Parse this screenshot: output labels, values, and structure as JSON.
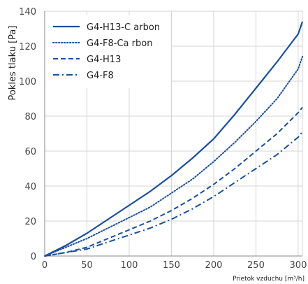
{
  "chart_data": {
    "type": "line",
    "xlabel": "Prietok vzduchu [m³/h]",
    "ylabel": "Pokles tlaku [Pa]",
    "xlim": [
      0,
      305
    ],
    "ylim": [
      0,
      140
    ],
    "x_ticks": [
      0,
      50,
      100,
      150,
      200,
      250,
      300
    ],
    "y_ticks": [
      0,
      20,
      40,
      60,
      80,
      100,
      120,
      140
    ],
    "grid": "both",
    "legend_position": "top-left",
    "series": [
      {
        "name": "G4-H13-C arbon",
        "style": "solid",
        "color": "#1a4f9c",
        "points": [
          [
            0,
            0
          ],
          [
            25,
            6
          ],
          [
            50,
            13
          ],
          [
            75,
            21
          ],
          [
            100,
            29
          ],
          [
            125,
            37
          ],
          [
            150,
            46
          ],
          [
            175,
            56
          ],
          [
            200,
            67
          ],
          [
            225,
            81
          ],
          [
            250,
            96
          ],
          [
            275,
            111
          ],
          [
            300,
            127
          ],
          [
            305,
            134
          ]
        ]
      },
      {
        "name": "G4-F8-Ca rbon",
        "style": "dotted",
        "color": "#1a4f9c",
        "points": [
          [
            0,
            0
          ],
          [
            25,
            5
          ],
          [
            50,
            10
          ],
          [
            75,
            16
          ],
          [
            100,
            22
          ],
          [
            125,
            28
          ],
          [
            150,
            36
          ],
          [
            175,
            44
          ],
          [
            200,
            54
          ],
          [
            225,
            65
          ],
          [
            250,
            77
          ],
          [
            275,
            90
          ],
          [
            300,
            107
          ],
          [
            305,
            114
          ]
        ]
      },
      {
        "name": "G4-H13",
        "style": "dashed",
        "color": "#1a4f9c",
        "points": [
          [
            0,
            0
          ],
          [
            25,
            2
          ],
          [
            50,
            5
          ],
          [
            75,
            10
          ],
          [
            100,
            15
          ],
          [
            125,
            20
          ],
          [
            150,
            26
          ],
          [
            175,
            33
          ],
          [
            200,
            41
          ],
          [
            225,
            50
          ],
          [
            250,
            60
          ],
          [
            275,
            70
          ],
          [
            300,
            82
          ],
          [
            305,
            85
          ]
        ]
      },
      {
        "name": "G4-F8",
        "style": "dashdot",
        "color": "#1a4f9c",
        "points": [
          [
            0,
            0
          ],
          [
            25,
            2
          ],
          [
            50,
            4
          ],
          [
            75,
            8
          ],
          [
            100,
            12
          ],
          [
            125,
            16
          ],
          [
            150,
            21
          ],
          [
            175,
            27
          ],
          [
            200,
            34
          ],
          [
            225,
            42
          ],
          [
            250,
            50
          ],
          [
            275,
            58
          ],
          [
            300,
            68
          ],
          [
            305,
            71
          ]
        ]
      }
    ]
  }
}
